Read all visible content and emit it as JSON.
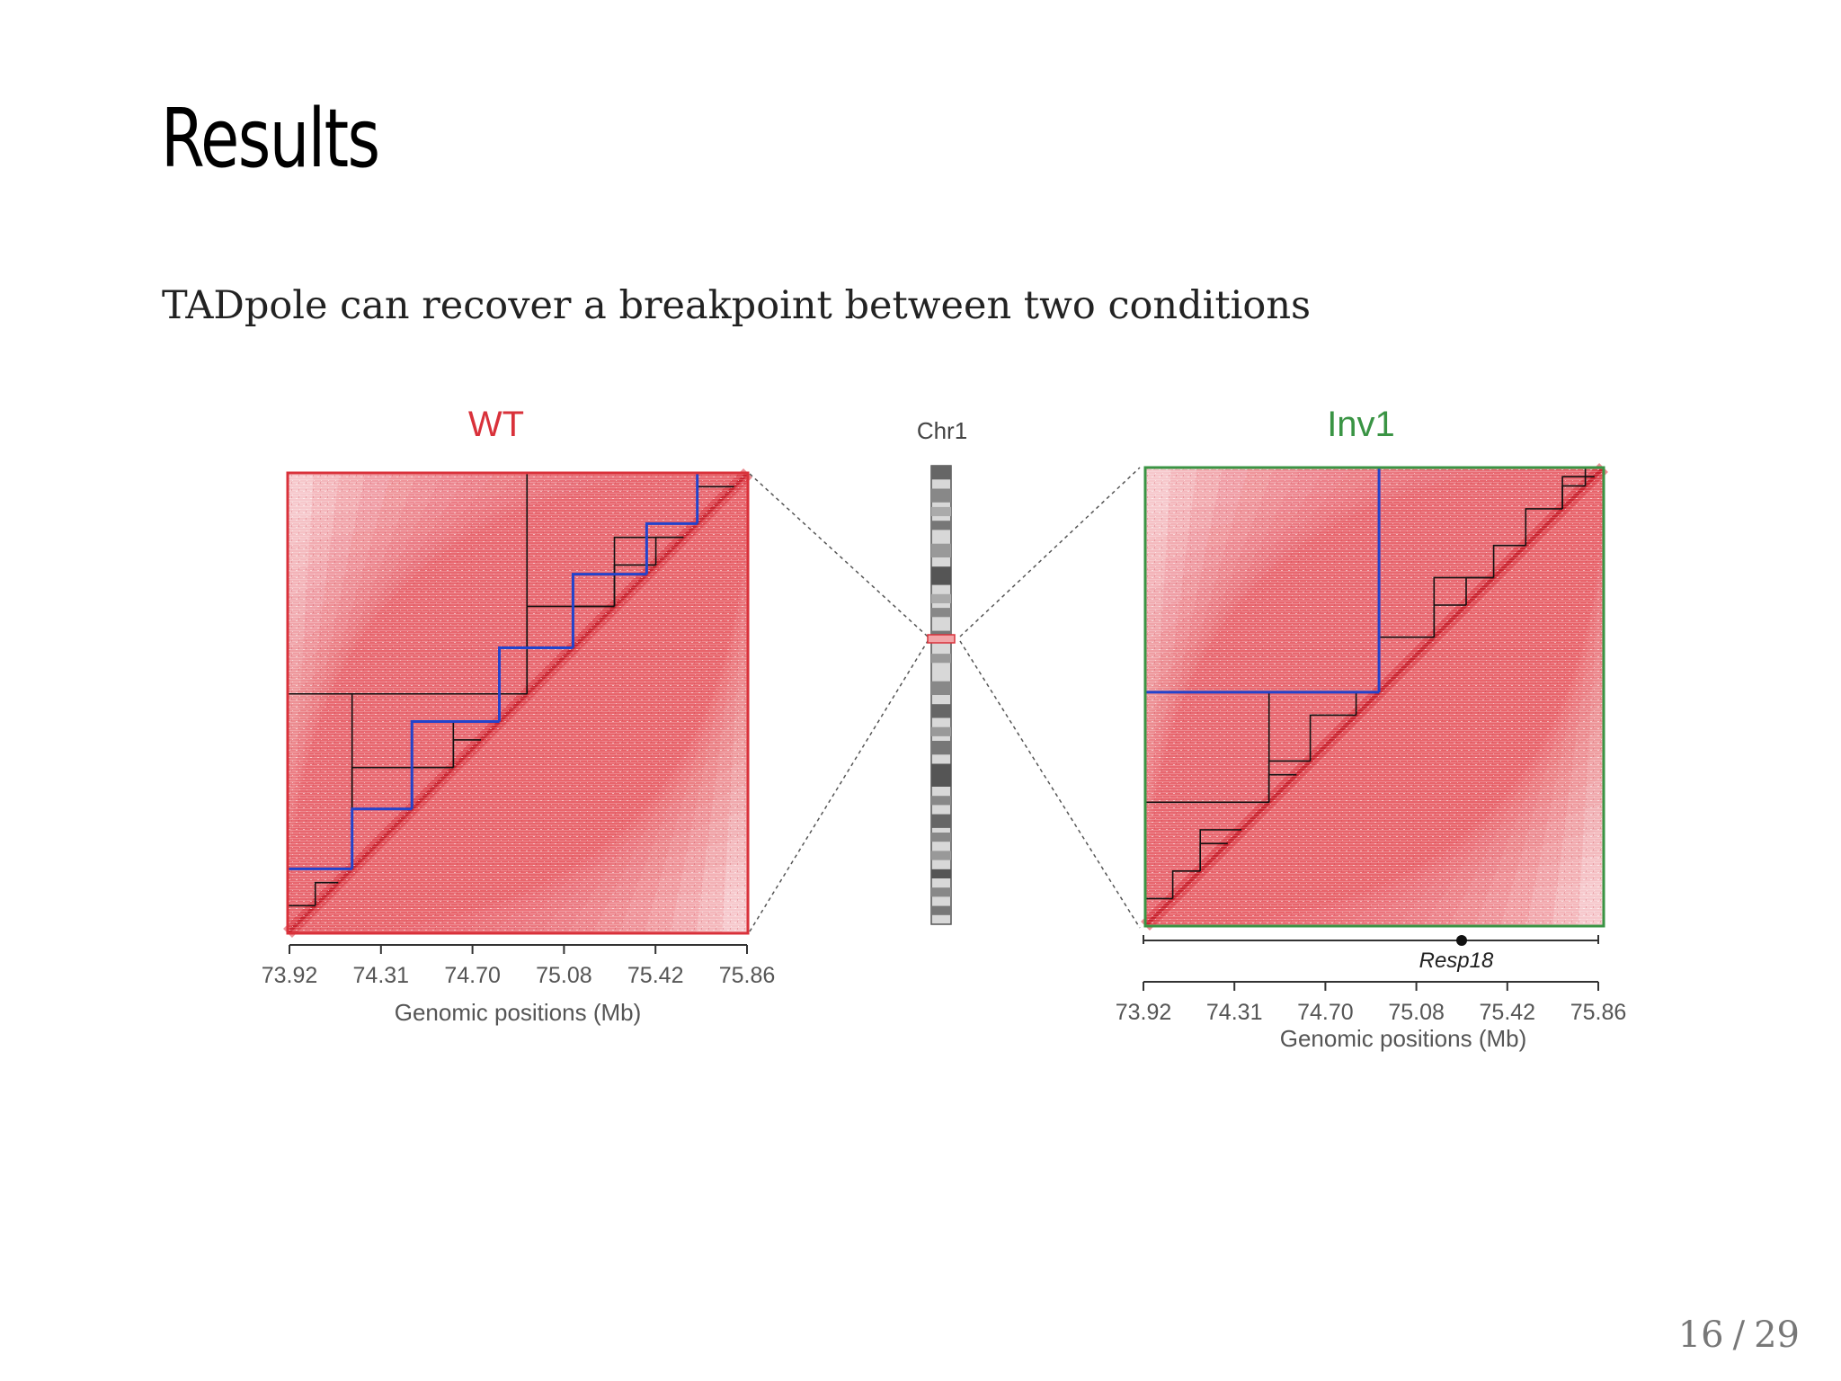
{
  "slide": {
    "title": "Results",
    "subtitle": "TADpole can recover a breakpoint between two conditions",
    "page_current": "16",
    "page_separator": "/",
    "page_total": "29"
  },
  "figure": {
    "colors": {
      "wt": "#d9313a",
      "inv1": "#3a9444",
      "heat": "#e8505a",
      "heat_light": "#f6c8cc",
      "tad_blue": "#2244cc",
      "tad_black": "#111111"
    },
    "wt": {
      "label": "WT",
      "tick_labels": [
        "73.92",
        "74.31",
        "74.70",
        "75.08",
        "75.42",
        "75.86"
      ],
      "xlabel": "Genomic positions (Mb)",
      "tads_blue": [
        [
          0,
          0.14
        ],
        [
          0.14,
          0.27
        ],
        [
          0.27,
          0.46
        ],
        [
          0.46,
          0.62
        ],
        [
          0.62,
          0.78
        ],
        [
          0.78,
          0.89
        ],
        [
          0.89,
          1.0
        ]
      ],
      "tads_black": [
        [
          0,
          0.52
        ],
        [
          0.52,
          1.0
        ],
        [
          0.14,
          0.52
        ],
        [
          0.14,
          0.36
        ],
        [
          0.27,
          0.36
        ],
        [
          0.36,
          0.46
        ],
        [
          0.36,
          0.42
        ],
        [
          0.0,
          0.06
        ],
        [
          0.06,
          0.11
        ],
        [
          0.52,
          0.71
        ],
        [
          0.62,
          0.71
        ],
        [
          0.71,
          0.86
        ],
        [
          0.71,
          0.8
        ],
        [
          0.8,
          0.86
        ],
        [
          0.89,
          0.97
        ]
      ]
    },
    "chromosome": {
      "label": "Chr1"
    },
    "inv1": {
      "label": "Inv1",
      "gene_label": "Resp18",
      "tick_labels": [
        "73.92",
        "74.31",
        "74.70",
        "75.08",
        "75.42",
        "75.86"
      ],
      "xlabel": "Genomic positions (Mb)",
      "tads_blue": [
        [
          0,
          0.51
        ],
        [
          0.51,
          1.0
        ]
      ],
      "tads_black": [
        [
          0,
          0.27
        ],
        [
          0.27,
          0.51
        ],
        [
          0.0,
          0.06
        ],
        [
          0.06,
          0.12
        ],
        [
          0.12,
          0.21
        ],
        [
          0.12,
          0.18
        ],
        [
          0.27,
          0.36
        ],
        [
          0.27,
          0.33
        ],
        [
          0.36,
          0.46
        ],
        [
          0.46,
          0.51
        ],
        [
          0.51,
          1.0
        ],
        [
          0.51,
          0.63
        ],
        [
          0.63,
          0.76
        ],
        [
          0.63,
          0.7
        ],
        [
          0.7,
          0.76
        ],
        [
          0.76,
          0.83
        ],
        [
          0.83,
          0.91
        ],
        [
          0.91,
          0.96
        ],
        [
          0.96,
          1.0
        ],
        [
          0.91,
          0.98
        ]
      ]
    }
  }
}
